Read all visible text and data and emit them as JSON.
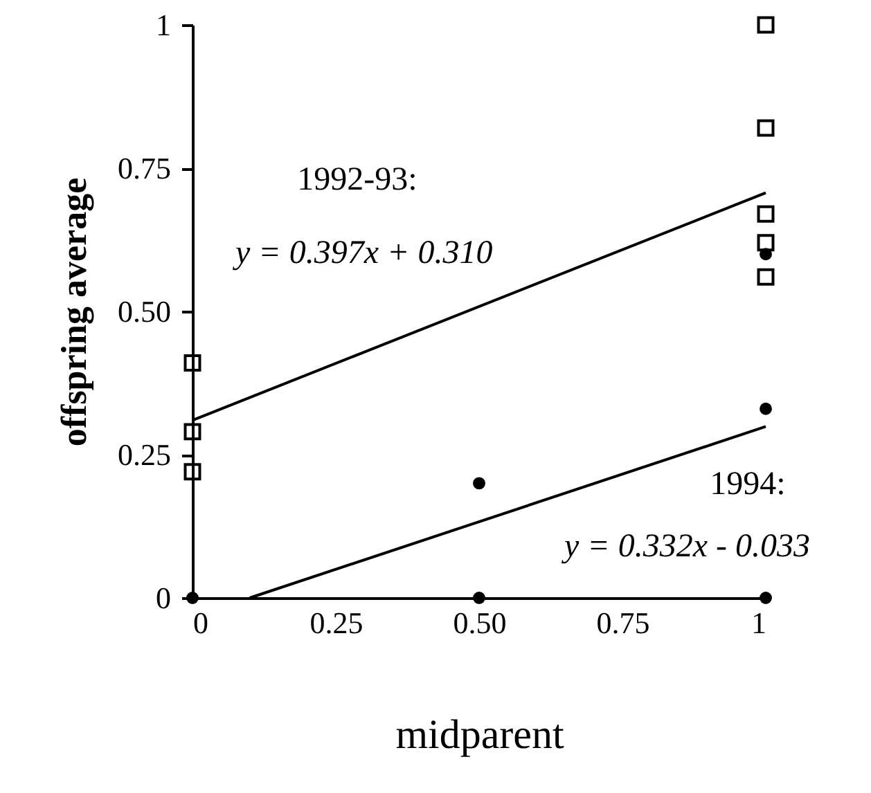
{
  "chart_data": {
    "type": "scatter",
    "xlabel": "midparent",
    "ylabel": "offspring average",
    "annotations": [
      "1992-93:",
      "y = 0.397x + 0.310",
      "1994:",
      "y = 0.332x - 0.033"
    ],
    "xlim": [
      0,
      1
    ],
    "ylim": [
      0,
      1
    ],
    "xticks": [
      0,
      0.25,
      {
        "value": 0.5,
        "label": "0.50"
      },
      0.75,
      1
    ],
    "yticks": [
      0,
      0.25,
      {
        "value": 0.5,
        "label": "0.50"
      },
      0.75,
      1
    ],
    "grid": false,
    "series": [
      {
        "marker": "square",
        "color": "#000000",
        "x": [
          0,
          0,
          0,
          1,
          1,
          1,
          1,
          1
        ],
        "values": [
          0.41,
          0.29,
          0.22,
          1.0,
          0.82,
          0.67,
          0.62,
          0.56
        ]
      },
      {
        "marker": "circle",
        "color": "#000000",
        "x": [
          0,
          0.5,
          0.5,
          1,
          1,
          1
        ],
        "values": [
          0,
          0.2,
          0,
          0.6,
          0.33,
          0
        ]
      },
      {
        "type": "line",
        "color": "#000000",
        "x": [
          0,
          1
        ],
        "values": [
          0.31,
          0.707
        ]
      },
      {
        "type": "line",
        "color": "#000000",
        "x": [
          0.1,
          1
        ],
        "values": [
          0,
          0.299
        ]
      }
    ]
  }
}
